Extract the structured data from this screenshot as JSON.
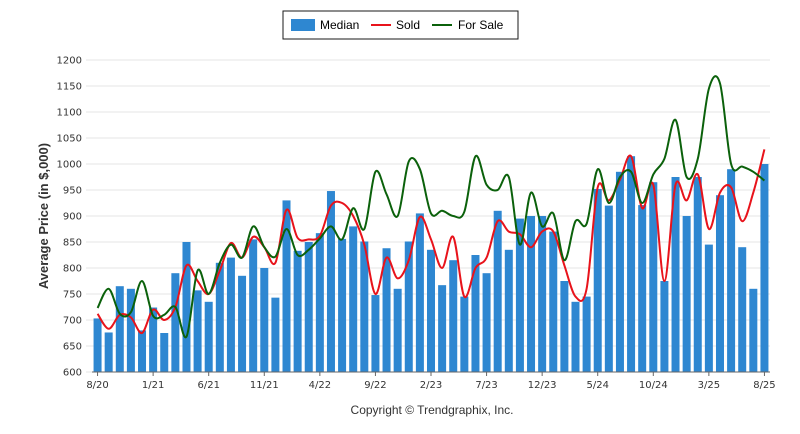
{
  "chart_data": {
    "type": "bar+line",
    "ylabel": "Average Price (in $,000)",
    "ylim": [
      600,
      1200
    ],
    "yticks": [
      600,
      650,
      700,
      750,
      800,
      850,
      900,
      950,
      1000,
      1050,
      1100,
      1150,
      1200
    ],
    "xtick_labels": [
      "8/20",
      "1/21",
      "6/21",
      "11/21",
      "4/22",
      "9/22",
      "2/23",
      "7/23",
      "12/23",
      "5/24",
      "10/24",
      "3/25",
      "8/25"
    ],
    "xtick_every": 5,
    "grid": "horizontal",
    "legend_position": "top-center",
    "series": [
      {
        "name": "Median",
        "kind": "bar",
        "color": "#2e87d1",
        "values": [
          703,
          676,
          765,
          760,
          680,
          724,
          675,
          790,
          850,
          757,
          735,
          810,
          820,
          785,
          855,
          800,
          743,
          930,
          833,
          850,
          867,
          948,
          856,
          880,
          851,
          748,
          838,
          760,
          851,
          905,
          835,
          767,
          815,
          745,
          825,
          790,
          910,
          835,
          895,
          900,
          900,
          870,
          775,
          735,
          745,
          952,
          920,
          985,
          1015,
          921,
          965,
          775,
          975,
          900,
          975,
          845,
          940,
          990,
          840,
          760,
          1000
        ]
      },
      {
        "name": "Sold",
        "kind": "line",
        "color": "#e8131b",
        "values": [
          712,
          683,
          710,
          705,
          675,
          720,
          700,
          725,
          805,
          775,
          750,
          795,
          848,
          820,
          860,
          840,
          810,
          912,
          858,
          855,
          862,
          920,
          925,
          900,
          845,
          750,
          820,
          780,
          815,
          898,
          855,
          800,
          860,
          745,
          800,
          820,
          890,
          870,
          865,
          840,
          870,
          870,
          805,
          745,
          760,
          955,
          930,
          970,
          1015,
          915,
          960,
          775,
          960,
          930,
          980,
          875,
          945,
          955,
          890,
          945,
          1028
        ]
      },
      {
        "name": "For Sale",
        "kind": "line",
        "color": "#0b610b",
        "values": [
          723,
          760,
          712,
          715,
          775,
          708,
          710,
          725,
          668,
          795,
          750,
          810,
          845,
          820,
          880,
          840,
          822,
          875,
          825,
          835,
          857,
          880,
          855,
          915,
          875,
          985,
          942,
          900,
          1005,
          990,
          905,
          910,
          900,
          908,
          1015,
          960,
          950,
          975,
          845,
          945,
          880,
          905,
          815,
          890,
          885,
          990,
          925,
          975,
          985,
          925,
          980,
          1010,
          1085,
          975,
          1010,
          1145,
          1155,
          1000,
          995,
          985,
          968
        ]
      }
    ]
  },
  "legend": {
    "median_label": "Median",
    "sold_label": "Sold",
    "for_sale_label": "For Sale"
  },
  "footer": {
    "copyright": "Copyright © Trendgraphix, Inc."
  }
}
